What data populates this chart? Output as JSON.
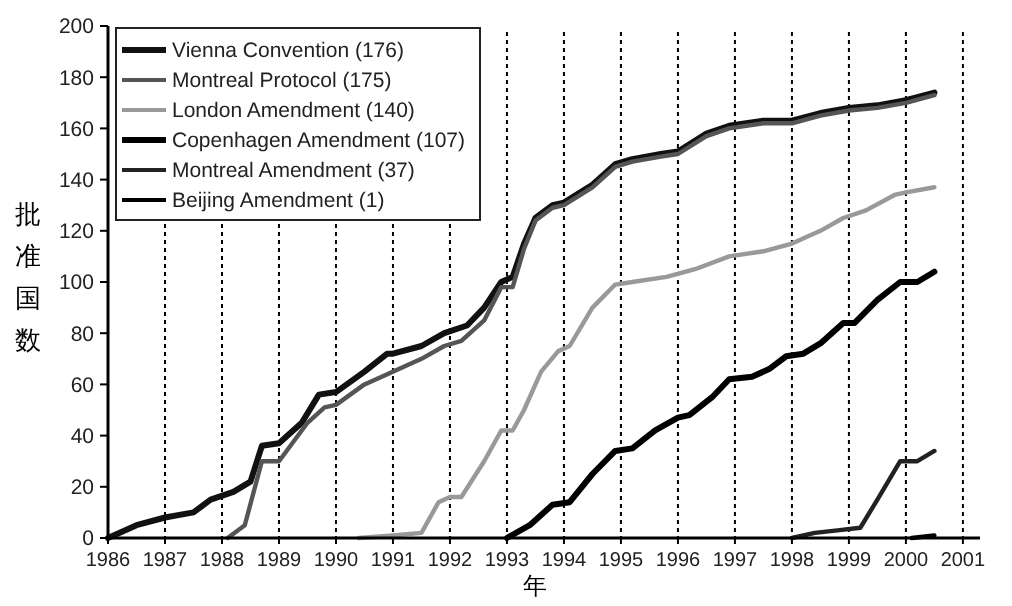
{
  "chart_data": {
    "type": "line",
    "xlabel": "年",
    "ylabel": "批准国数",
    "xlim": [
      1986,
      2001.3
    ],
    "xticks": [
      1986,
      1987,
      1988,
      1989,
      1990,
      1991,
      1992,
      1993,
      1994,
      1995,
      1996,
      1997,
      1998,
      1999,
      2000,
      2001
    ],
    "ylim": [
      0,
      200
    ],
    "yticks": [
      0,
      20,
      40,
      60,
      80,
      100,
      120,
      140,
      160,
      180,
      200
    ],
    "grid": "x",
    "legend": "top left",
    "marker": "none",
    "line_style": "solid",
    "series": [
      {
        "name": "Vienna Convention (176)",
        "color": "#111111",
        "x": [
          1986,
          1986.5,
          1987,
          1987.5,
          1987.8,
          1988.2,
          1988.5,
          1988.7,
          1989,
          1989.4,
          1989.7,
          1990,
          1990.5,
          1990.9,
          1991,
          1991.5,
          1991.9,
          1992.3,
          1992.6,
          1992.9,
          1993.1,
          1993.3,
          1993.5,
          1993.8,
          1994,
          1994.5,
          1994.9,
          1995.2,
          1995.7,
          1996,
          1996.5,
          1996.9,
          1997.5,
          1998,
          1998.5,
          1999,
          1999.5,
          2000,
          2000.5
        ],
        "values": [
          0,
          5,
          8,
          10,
          15,
          18,
          22,
          36,
          37,
          45,
          56,
          57,
          65,
          72,
          72,
          75,
          80,
          83,
          90,
          100,
          102,
          115,
          125,
          130,
          131,
          138,
          146,
          148,
          150,
          151,
          158,
          161,
          163,
          163,
          166,
          168,
          169,
          171,
          174
        ]
      },
      {
        "name": "Montreal Protocol (175)",
        "color": "#555555",
        "x": [
          1988.1,
          1988.4,
          1988.7,
          1989,
          1989.5,
          1989.8,
          1990,
          1990.5,
          1990.9,
          1991.5,
          1991.9,
          1992.2,
          1992.6,
          1992.9,
          1993.1,
          1993.3,
          1993.5,
          1993.8,
          1994,
          1994.5,
          1994.9,
          1995.2,
          1995.7,
          1996,
          1996.5,
          1996.9,
          1997.5,
          1998,
          1998.5,
          1999,
          1999.5,
          2000,
          2000.5
        ],
        "values": [
          0,
          5,
          30,
          30,
          45,
          51,
          52,
          60,
          64,
          70,
          75,
          77,
          85,
          98,
          98,
          113,
          124,
          129,
          130,
          137,
          145,
          147,
          149,
          150,
          157,
          160,
          162,
          162,
          165,
          167,
          168,
          170,
          173
        ]
      },
      {
        "name": "London Amendment (140)",
        "color": "#999999",
        "x": [
          1990.4,
          1991,
          1991.5,
          1991.8,
          1992,
          1992.2,
          1992.6,
          1992.9,
          1993.1,
          1993.3,
          1993.6,
          1993.9,
          1994.1,
          1994.5,
          1994.9,
          1995.2,
          1995.8,
          1996.3,
          1996.9,
          1997.5,
          1998,
          1998.5,
          1998.9,
          1999.3,
          1999.8,
          2000,
          2000.5
        ],
        "values": [
          0,
          1,
          2,
          14,
          16,
          16,
          30,
          42,
          42,
          50,
          65,
          73,
          75,
          90,
          99,
          100,
          102,
          105,
          110,
          112,
          115,
          120,
          125,
          128,
          134,
          135,
          137
        ]
      },
      {
        "name": "Copenhagen Amendment (107)",
        "color": "#000000",
        "x": [
          1993,
          1993.4,
          1993.8,
          1994.1,
          1994.5,
          1994.9,
          1995.2,
          1995.6,
          1996,
          1996.2,
          1996.6,
          1996.9,
          1997.3,
          1997.6,
          1997.9,
          1998.2,
          1998.5,
          1998.9,
          1999.1,
          1999.5,
          1999.9,
          2000.2,
          2000.5
        ],
        "values": [
          0,
          5,
          13,
          14,
          25,
          34,
          35,
          42,
          47,
          48,
          55,
          62,
          63,
          66,
          71,
          72,
          76,
          84,
          84,
          93,
          100,
          100,
          104
        ]
      },
      {
        "name": "Montreal Amendment (37)",
        "color": "#222222",
        "x": [
          1998,
          1998.4,
          1998.8,
          1999.2,
          1999.5,
          1999.9,
          2000.2,
          2000.5
        ],
        "values": [
          0,
          2,
          3,
          4,
          15,
          30,
          30,
          34
        ]
      },
      {
        "name": "Beijing Amendment (1)",
        "color": "#000000",
        "x": [
          2000.1,
          2000.5
        ],
        "values": [
          0,
          1
        ]
      }
    ]
  }
}
